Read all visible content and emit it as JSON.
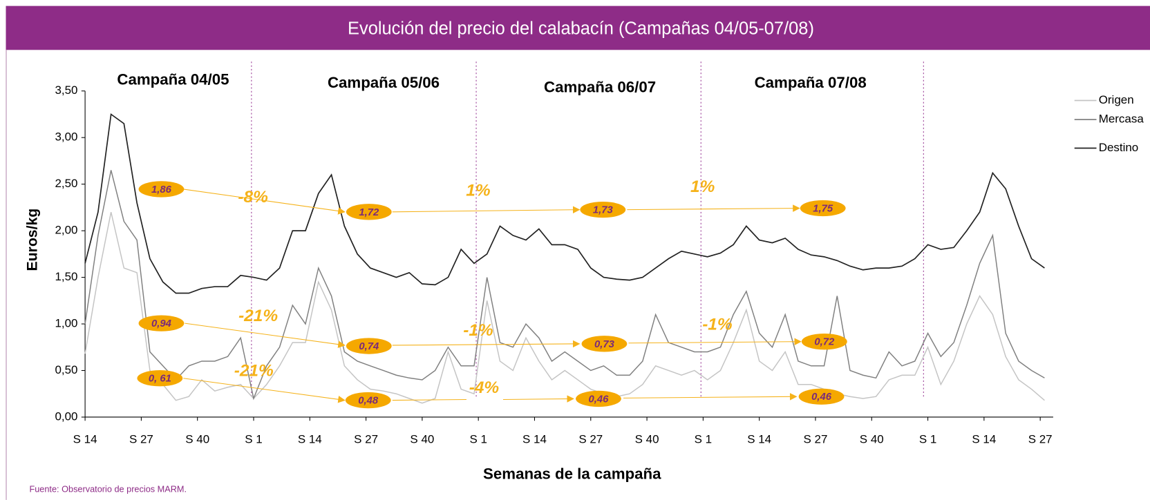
{
  "chart_data": {
    "type": "line",
    "title": "Evolución del precio del calabacín (Campañas 04/05-07/08)",
    "x_label": "Semanas de la campaña",
    "y_label": "Euros/kg",
    "source": "Fuente: Observatorio de precios MARM.",
    "legend": "right",
    "grid": false,
    "xlim": [
      0,
      224
    ],
    "ylim": [
      0,
      3.5
    ],
    "yticks": [
      {
        "value": 0,
        "label": "0,00"
      },
      {
        "value": 0.5,
        "label": "0,50"
      },
      {
        "value": 1,
        "label": "1,00"
      },
      {
        "value": 1.5,
        "label": "1,50"
      },
      {
        "value": 2,
        "label": "2,00"
      },
      {
        "value": 2.5,
        "label": "2,50"
      },
      {
        "value": 3,
        "label": "3,00"
      },
      {
        "value": 3.5,
        "label": "3,50"
      }
    ],
    "xticks": [
      {
        "value": 0,
        "label": "S 14"
      },
      {
        "value": 13,
        "label": "S 27"
      },
      {
        "value": 26,
        "label": "S 40"
      },
      {
        "value": 39,
        "label": "S 1"
      },
      {
        "value": 52,
        "label": "S 14"
      },
      {
        "value": 65,
        "label": "S 27"
      },
      {
        "value": 78,
        "label": "S 40"
      },
      {
        "value": 91,
        "label": "S 1"
      },
      {
        "value": 104,
        "label": "S 14"
      },
      {
        "value": 117,
        "label": "S 27"
      },
      {
        "value": 130,
        "label": "S 40"
      },
      {
        "value": 143,
        "label": "S 1"
      },
      {
        "value": 156,
        "label": "S 14"
      },
      {
        "value": 169,
        "label": "S 27"
      },
      {
        "value": 182,
        "label": "S 40"
      },
      {
        "value": 195,
        "label": "S 1"
      },
      {
        "value": 208,
        "label": "S 14"
      },
      {
        "value": 221,
        "label": "S 27"
      }
    ],
    "dividers": [
      38.5,
      90.5,
      142.5,
      194
    ],
    "x": [
      0,
      3,
      6,
      9,
      12,
      15,
      18,
      21,
      24,
      27,
      30,
      33,
      36,
      39,
      42,
      45,
      48,
      51,
      54,
      57,
      60,
      63,
      66,
      69,
      72,
      75,
      78,
      81,
      84,
      87,
      90,
      93,
      96,
      99,
      102,
      105,
      108,
      111,
      114,
      117,
      120,
      123,
      126,
      129,
      132,
      135,
      138,
      141,
      144,
      147,
      150,
      153,
      156,
      159,
      162,
      165,
      168,
      171,
      174,
      177,
      180,
      183,
      186,
      189,
      192,
      195,
      198,
      201,
      204,
      207,
      210,
      213,
      216,
      219,
      222
    ],
    "series": [
      {
        "name": "Origen",
        "color": "#c4c4c4",
        "values": [
          0.68,
          1.5,
          2.2,
          1.6,
          1.55,
          0.5,
          0.35,
          0.18,
          0.22,
          0.4,
          0.28,
          0.32,
          0.35,
          0.2,
          0.35,
          0.55,
          0.8,
          0.8,
          1.45,
          1.15,
          0.55,
          0.4,
          0.3,
          0.28,
          0.25,
          0.2,
          0.15,
          0.2,
          0.7,
          0.3,
          0.25,
          1.25,
          0.6,
          0.5,
          0.85,
          0.6,
          0.4,
          0.5,
          0.4,
          0.3,
          0.25,
          0.22,
          0.25,
          0.35,
          0.55,
          0.5,
          0.45,
          0.5,
          0.4,
          0.5,
          0.8,
          1.15,
          0.6,
          0.5,
          0.7,
          0.35,
          0.35,
          0.3,
          0.25,
          0.22,
          0.2,
          0.22,
          0.4,
          0.45,
          0.45,
          0.75,
          0.35,
          0.6,
          1.0,
          1.3,
          1.1,
          0.65,
          0.4,
          0.3,
          0.18
        ]
      },
      {
        "name": "Mercasa",
        "color": "#808080",
        "values": [
          1.0,
          1.95,
          2.65,
          2.1,
          1.9,
          0.7,
          0.55,
          0.4,
          0.55,
          0.6,
          0.6,
          0.65,
          0.85,
          0.2,
          0.55,
          0.75,
          1.2,
          1.0,
          1.6,
          1.3,
          0.7,
          0.6,
          0.55,
          0.5,
          0.45,
          0.42,
          0.4,
          0.5,
          0.75,
          0.55,
          0.55,
          1.5,
          0.8,
          0.75,
          1.0,
          0.85,
          0.6,
          0.7,
          0.6,
          0.5,
          0.55,
          0.45,
          0.45,
          0.6,
          1.1,
          0.8,
          0.75,
          0.7,
          0.7,
          0.75,
          1.1,
          1.35,
          0.9,
          0.75,
          1.1,
          0.6,
          0.55,
          0.55,
          1.3,
          0.5,
          0.45,
          0.42,
          0.7,
          0.55,
          0.6,
          0.9,
          0.65,
          0.8,
          1.2,
          1.65,
          1.95,
          0.9,
          0.6,
          0.5,
          0.42
        ]
      },
      {
        "name": "Destino",
        "color": "#222222",
        "values": [
          1.65,
          2.2,
          3.25,
          3.15,
          2.3,
          1.7,
          1.45,
          1.33,
          1.33,
          1.38,
          1.4,
          1.4,
          1.52,
          1.5,
          1.47,
          1.6,
          2.0,
          2.0,
          2.4,
          2.6,
          2.05,
          1.75,
          1.6,
          1.55,
          1.5,
          1.55,
          1.43,
          1.42,
          1.5,
          1.8,
          1.65,
          1.75,
          2.05,
          1.95,
          1.9,
          2.02,
          1.85,
          1.85,
          1.8,
          1.6,
          1.5,
          1.48,
          1.47,
          1.5,
          1.6,
          1.7,
          1.78,
          1.75,
          1.72,
          1.76,
          1.85,
          2.05,
          1.9,
          1.87,
          1.92,
          1.8,
          1.74,
          1.72,
          1.68,
          1.62,
          1.58,
          1.6,
          1.6,
          1.62,
          1.7,
          1.85,
          1.8,
          1.82,
          2.0,
          2.2,
          2.62,
          2.45,
          2.05,
          1.7,
          1.6
        ]
      }
    ],
    "campaigns": [
      "Campaña 04/05",
      "Campaña 05/06",
      "Campaña 06/07",
      "Campaña 07/08"
    ],
    "price_labels": [
      "1,86",
      "1,72",
      "1,73",
      "1,75",
      "0,94",
      "0,74",
      "0,73",
      "0,72",
      "0, 61",
      "0,48",
      "0,46",
      "0,46"
    ],
    "change_labels": [
      "-8%",
      "1%",
      "1%",
      "-21%",
      "-1%",
      "-1%",
      "-21%",
      "-4%"
    ]
  }
}
